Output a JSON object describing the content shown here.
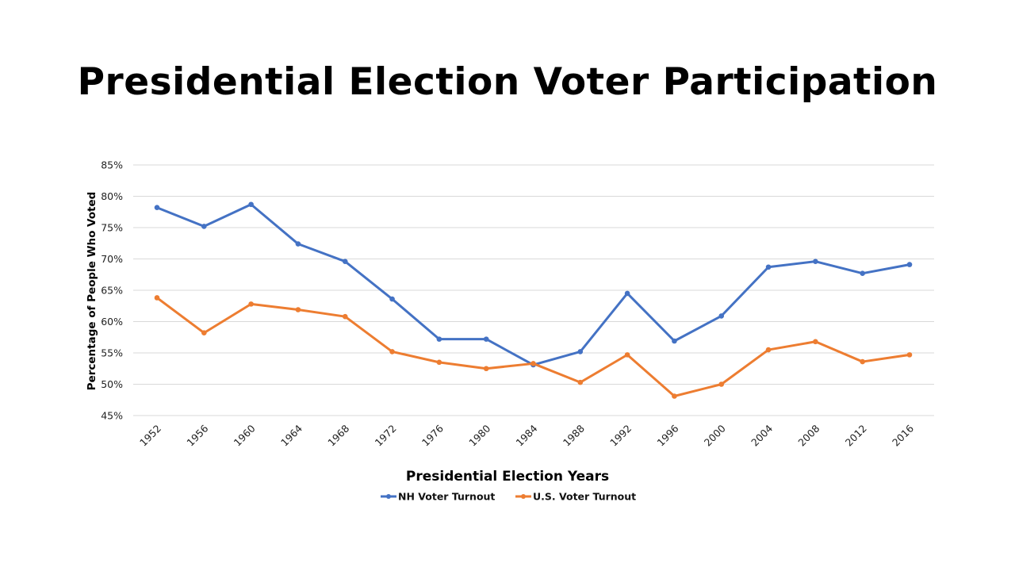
{
  "chart_data": {
    "type": "line",
    "title": "Presidential Election Voter Participation",
    "xlabel": "Presidential Election Years",
    "ylabel": "Percentage of People Who Voted",
    "ylim": [
      45,
      85
    ],
    "ytick_step": 5,
    "ytick_labels": [
      "45%",
      "50%",
      "55%",
      "60%",
      "65%",
      "70%",
      "75%",
      "80%",
      "85%"
    ],
    "grid": "horizontal",
    "legend_position": "bottom",
    "categories": [
      "1952",
      "1956",
      "1960",
      "1964",
      "1968",
      "1972",
      "1976",
      "1980",
      "1984",
      "1988",
      "1992",
      "1996",
      "2000",
      "2004",
      "2008",
      "2012",
      "2016"
    ],
    "series": [
      {
        "name": "NH Voter Turnout",
        "color": "#4472C4",
        "values": [
          78.2,
          75.2,
          78.7,
          72.4,
          69.6,
          63.6,
          57.2,
          57.2,
          53.1,
          55.2,
          64.5,
          56.9,
          60.9,
          68.7,
          69.6,
          67.7,
          69.1
        ]
      },
      {
        "name": "U.S. Voter Turnout",
        "color": "#ED7D31",
        "values": [
          63.8,
          58.2,
          62.8,
          61.9,
          60.8,
          55.2,
          53.5,
          52.5,
          53.3,
          50.3,
          54.7,
          48.1,
          50.0,
          55.5,
          56.8,
          53.6,
          54.7
        ]
      }
    ]
  }
}
